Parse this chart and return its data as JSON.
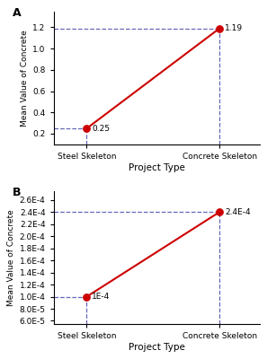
{
  "panel_A": {
    "x": [
      0,
      1
    ],
    "y": [
      0.25,
      1.19
    ],
    "x_labels": [
      "Steel Skeleton",
      "Concrete Skeleton"
    ],
    "ylabel": "Mean Value of Concrete",
    "xlabel": "Project Type",
    "point_labels": [
      "0.25",
      "1.19"
    ],
    "ylim": [
      0.1,
      1.35
    ],
    "yticks": [
      0.2,
      0.4,
      0.6,
      0.8,
      1.0,
      1.2
    ]
  },
  "panel_B": {
    "x": [
      0,
      1
    ],
    "y": [
      0.0001,
      0.00024
    ],
    "x_labels": [
      "Steel Skeleton",
      "Concrete Skeleton"
    ],
    "ylabel": "Mean Value of Concrete",
    "xlabel": "Project Type",
    "point_labels": [
      "1E-4",
      "2.4E-4"
    ],
    "ylim": [
      5.5e-05,
      0.000275
    ],
    "yticks": [
      6e-05,
      8e-05,
      0.0001,
      0.00012,
      0.00014,
      0.00016,
      0.00018,
      0.0002,
      0.00022,
      0.00024,
      0.00026
    ]
  },
  "line_color": "#CC0000",
  "dot_color": "#CC0000",
  "dashed_color": "#6666BB",
  "background_color": "#FFFFFF",
  "font_size": 6.5,
  "label_font_size": 7.5,
  "panel_label_font_size": 9
}
